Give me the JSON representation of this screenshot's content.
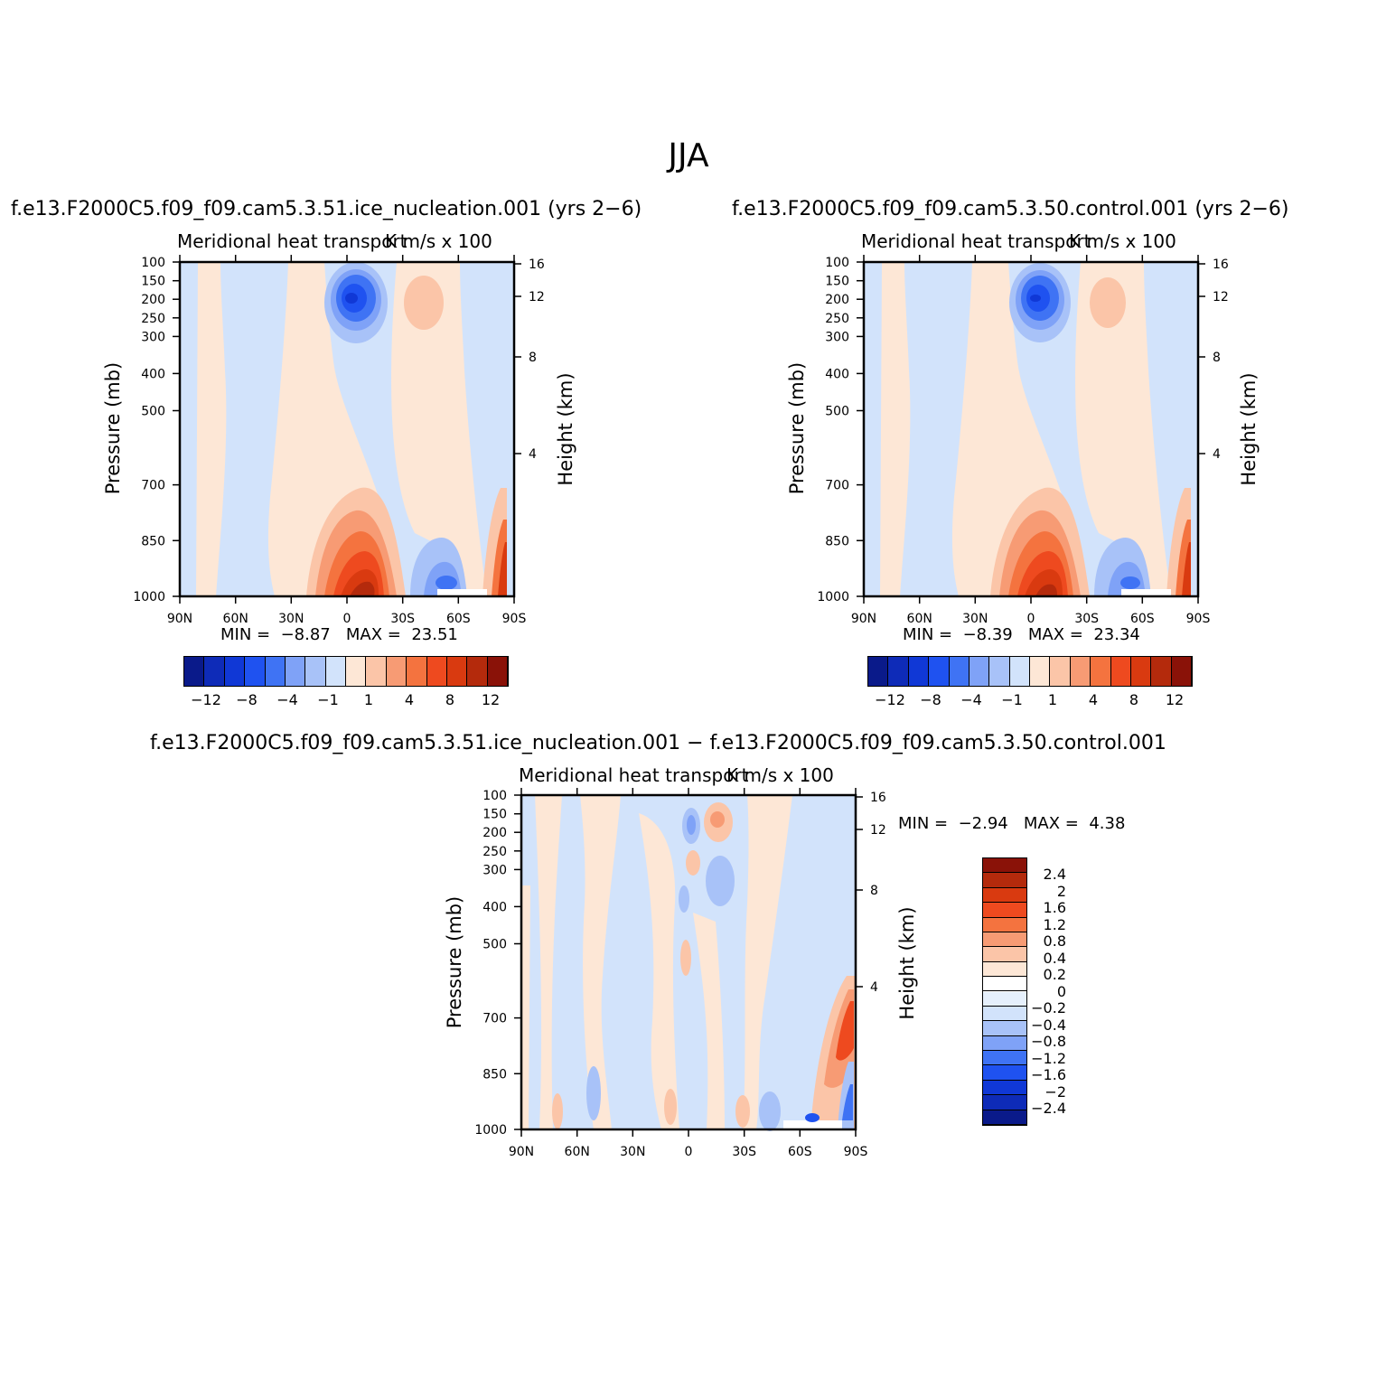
{
  "figure": {
    "title": "JJA",
    "bottom_title": "f.e13.F2000C5.f09_f09.cam5.3.51.ice_nucleation.001 − f.e13.F2000C5.f09_f09.cam5.3.50.control.001"
  },
  "colors": {
    "scale16": [
      "#0a1a8a",
      "#0e2bb8",
      "#1038d6",
      "#1f52f0",
      "#3f73f4",
      "#7fa2f7",
      "#a8c2f8",
      "#d2e3fb",
      "#fde7d6",
      "#fbc5a8",
      "#f79b74",
      "#f4733f",
      "#ee4a1f",
      "#d93a10",
      "#b42a0c",
      "#8a1208"
    ],
    "diff_levels": [
      "#8a1208",
      "#b42a0c",
      "#d93a10",
      "#ee4a1f",
      "#f4733f",
      "#f79b74",
      "#fbc5a8",
      "#fde7d6",
      "#ffffff",
      "#e6f0fc",
      "#d2e3fb",
      "#a8c2f8",
      "#7fa2f7",
      "#3f73f4",
      "#1f52f0",
      "#1038d6",
      "#0e2bb8",
      "#0a1a8a"
    ]
  },
  "chart_data": [
    {
      "type": "heatmap",
      "name": "ice_nucleation",
      "title": "f.e13.F2000C5.f09_f09.cam5.3.51.ice_nucleation.001 (yrs 2−6)",
      "left_subtitle": "Meridional heat transport",
      "right_subtitle": "K m/s x 100",
      "xlabel": "",
      "ylabel": "Pressure (mb)",
      "ylabel_right": "Height (km)",
      "x_ticks": [
        "90N",
        "60N",
        "30N",
        "0",
        "30S",
        "60S",
        "90S"
      ],
      "y_ticks": [
        "100",
        "150",
        "200",
        "250",
        "300",
        "400",
        "500",
        "700",
        "850",
        "1000"
      ],
      "height_ticks": [
        "16",
        "12",
        "8",
        "4"
      ],
      "min_label": "MIN =",
      "min": "−8.87",
      "max_label": "MAX =",
      "max": "23.51",
      "colorbar_ticks": [
        "−12",
        "−8",
        "−4",
        "−1",
        "1",
        "4",
        "8",
        "12"
      ]
    },
    {
      "type": "heatmap",
      "name": "control",
      "title": "f.e13.F2000C5.f09_f09.cam5.3.50.control.001 (yrs 2−6)",
      "left_subtitle": "Meridional heat transport",
      "right_subtitle": "K m/s x 100",
      "xlabel": "",
      "ylabel": "Pressure (mb)",
      "ylabel_right": "Height (km)",
      "x_ticks": [
        "90N",
        "60N",
        "30N",
        "0",
        "30S",
        "60S",
        "90S"
      ],
      "y_ticks": [
        "100",
        "150",
        "200",
        "250",
        "300",
        "400",
        "500",
        "700",
        "850",
        "1000"
      ],
      "height_ticks": [
        "16",
        "12",
        "8",
        "4"
      ],
      "min_label": "MIN =",
      "min": "−8.39",
      "max_label": "MAX =",
      "max": "23.34",
      "colorbar_ticks": [
        "−12",
        "−8",
        "−4",
        "−1",
        "1",
        "4",
        "8",
        "12"
      ]
    },
    {
      "type": "heatmap",
      "name": "difference",
      "left_subtitle": "Meridional heat transport",
      "right_subtitle": "K m/s x 100",
      "xlabel": "",
      "ylabel": "Pressure (mb)",
      "ylabel_right": "Height (km)",
      "x_ticks": [
        "90N",
        "60N",
        "30N",
        "0",
        "30S",
        "60S",
        "90S"
      ],
      "y_ticks": [
        "100",
        "150",
        "200",
        "250",
        "300",
        "400",
        "500",
        "700",
        "850",
        "1000"
      ],
      "height_ticks": [
        "16",
        "12",
        "8",
        "4"
      ],
      "min_label": "MIN =",
      "min": "−2.94",
      "max_label": "MAX =",
      "max": "4.38",
      "colorbar_levels": [
        "2.4",
        "2",
        "1.6",
        "1.2",
        "0.8",
        "0.4",
        "0.2",
        "0",
        "−0.2",
        "−0.4",
        "−0.8",
        "−1.2",
        "−1.6",
        "−2",
        "−2.4"
      ]
    }
  ]
}
